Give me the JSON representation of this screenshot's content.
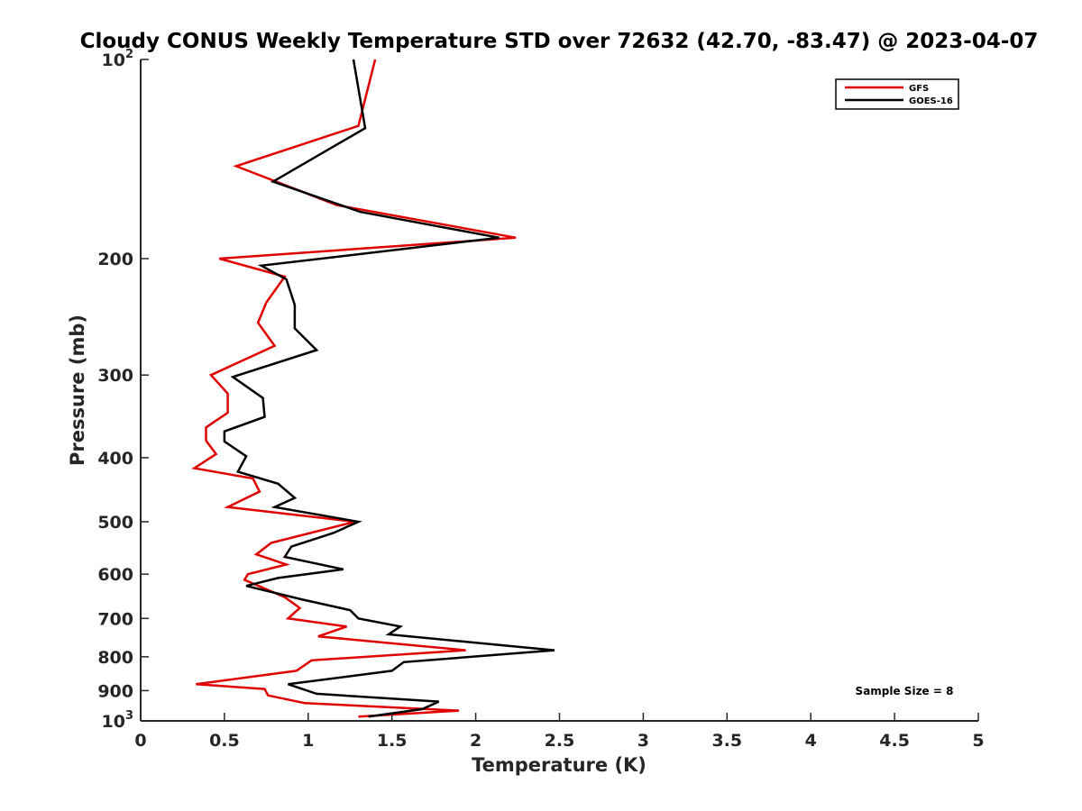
{
  "chart_data": {
    "type": "line",
    "title": "Cloudy CONUS Weekly Temperature STD over 72632 (42.70, -83.47) @ 2023-04-07",
    "xlabel": "Temperature (K)",
    "ylabel": "Pressure (mb)",
    "xlim": [
      0,
      5
    ],
    "ylim": [
      100,
      1000
    ],
    "y_scale": "log",
    "y_reversed": true,
    "x_ticks": [
      "0",
      "0.5",
      "1",
      "1.5",
      "2",
      "2.5",
      "3",
      "3.5",
      "4",
      "4.5",
      "5"
    ],
    "y_ticks": [
      {
        "value": 100,
        "base": "10",
        "exp": "2"
      },
      {
        "value": 200,
        "label": "200"
      },
      {
        "value": 300,
        "label": "300"
      },
      {
        "value": 400,
        "label": "400"
      },
      {
        "value": 500,
        "label": "500"
      },
      {
        "value": 600,
        "label": "600"
      },
      {
        "value": 700,
        "label": "700"
      },
      {
        "value": 800,
        "label": "800"
      },
      {
        "value": 900,
        "label": "900"
      },
      {
        "value": 1000,
        "base": "10",
        "exp": "3"
      }
    ],
    "legend_position": "top-right",
    "grid": false,
    "annotation": "Sample Size = 8",
    "series": [
      {
        "name": "GFS",
        "color": "#e00000",
        "points": [
          [
            1.4,
            100
          ],
          [
            1.3,
            126
          ],
          [
            0.57,
            145
          ],
          [
            1.17,
            166
          ],
          [
            2.24,
            186
          ],
          [
            0.47,
            200
          ],
          [
            0.86,
            213
          ],
          [
            0.75,
            233
          ],
          [
            0.7,
            250
          ],
          [
            0.8,
            271
          ],
          [
            0.42,
            300
          ],
          [
            0.52,
            320
          ],
          [
            0.52,
            342
          ],
          [
            0.39,
            360
          ],
          [
            0.39,
            377
          ],
          [
            0.45,
            395
          ],
          [
            0.32,
            415
          ],
          [
            0.67,
            430
          ],
          [
            0.71,
            450
          ],
          [
            0.52,
            475
          ],
          [
            1.28,
            500
          ],
          [
            0.78,
            538
          ],
          [
            0.69,
            560
          ],
          [
            0.87,
            580
          ],
          [
            0.64,
            600
          ],
          [
            0.62,
            612
          ],
          [
            0.86,
            650
          ],
          [
            0.95,
            675
          ],
          [
            0.88,
            700
          ],
          [
            1.23,
            720
          ],
          [
            1.06,
            745
          ],
          [
            1.94,
            782
          ],
          [
            1.02,
            810
          ],
          [
            0.93,
            840
          ],
          [
            0.33,
            880
          ],
          [
            0.74,
            895
          ],
          [
            0.76,
            915
          ],
          [
            0.98,
            940
          ],
          [
            1.9,
            965
          ],
          [
            1.3,
            985
          ]
        ]
      },
      {
        "name": "GOES-16",
        "color": "#000000",
        "points": [
          [
            1.27,
            100
          ],
          [
            1.34,
            127
          ],
          [
            0.79,
            153
          ],
          [
            1.31,
            170
          ],
          [
            2.14,
            186
          ],
          [
            0.72,
            205
          ],
          [
            0.87,
            215
          ],
          [
            0.92,
            235
          ],
          [
            0.92,
            255
          ],
          [
            1.05,
            275
          ],
          [
            0.55,
            302
          ],
          [
            0.73,
            325
          ],
          [
            0.74,
            347
          ],
          [
            0.5,
            365
          ],
          [
            0.5,
            378
          ],
          [
            0.63,
            398
          ],
          [
            0.58,
            420
          ],
          [
            0.82,
            438
          ],
          [
            0.92,
            460
          ],
          [
            0.8,
            475
          ],
          [
            1.3,
            500
          ],
          [
            1.15,
            520
          ],
          [
            0.9,
            545
          ],
          [
            0.86,
            565
          ],
          [
            1.21,
            590
          ],
          [
            0.82,
            608
          ],
          [
            0.63,
            625
          ],
          [
            0.96,
            655
          ],
          [
            1.25,
            680
          ],
          [
            1.3,
            700
          ],
          [
            1.55,
            720
          ],
          [
            1.48,
            740
          ],
          [
            2.47,
            782
          ],
          [
            1.57,
            815
          ],
          [
            1.5,
            840
          ],
          [
            0.88,
            880
          ],
          [
            1.05,
            910
          ],
          [
            1.78,
            935
          ],
          [
            1.68,
            960
          ],
          [
            1.36,
            985
          ]
        ]
      }
    ]
  }
}
